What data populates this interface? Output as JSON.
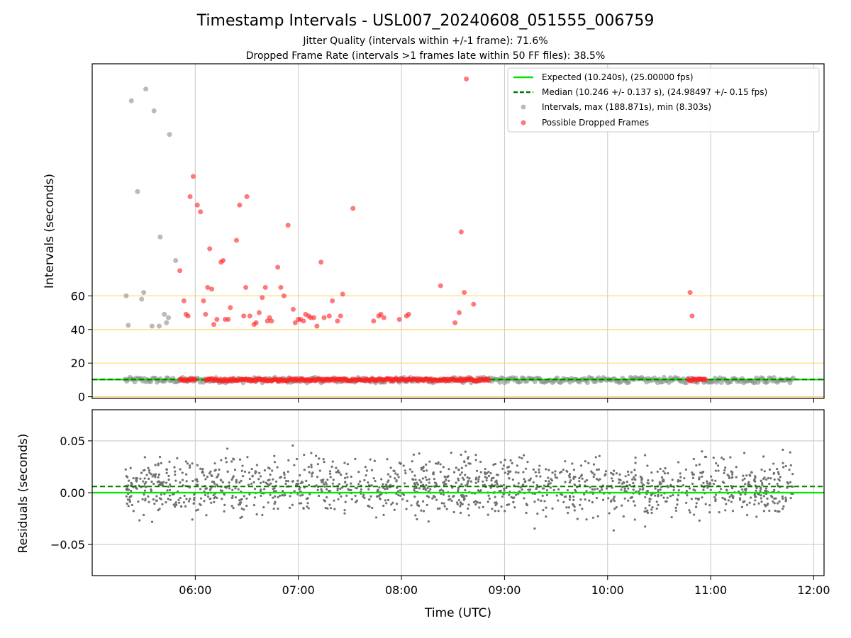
{
  "title": "Timestamp Intervals - USL007_20240608_051555_006759",
  "subtitle_jitter": "Jitter Quality (intervals within +/-1 frame): 71.6%",
  "subtitle_dropped": "Dropped Frame Rate (intervals >1 frames late within 50 FF files): 38.5%",
  "colors": {
    "expected": "#00e600",
    "median": "#007a00",
    "intervals": "#8c8c8c",
    "dropped": "#ff2020",
    "threshold": "#ffd666",
    "residuals": "#707070",
    "grid": "#c8c8c8"
  },
  "chart_data": [
    {
      "type": "scatter",
      "panel": "intervals",
      "ylabel": "Intervals (seconds)",
      "yticks": [
        "0",
        "20",
        "40",
        "60"
      ],
      "xlim_hours": [
        5.0,
        12.1
      ],
      "ylim": [
        -1,
        198
      ],
      "threshold_lines": [
        0,
        20,
        40,
        60
      ],
      "expected_value": 10.24,
      "median_value": 10.246,
      "grid": "vertical",
      "legend_position": "upper-right",
      "legend": {
        "expected": "Expected (10.240s), (25.00000 fps)",
        "median": "Median (10.246 +/- 0.137 s), (24.98497 +/- 0.15 fps)",
        "intervals": "Intervals, max (188.871s), min (8.303s)",
        "dropped": "Possible Dropped Frames"
      },
      "interval_outliers": [
        [
          5.33,
          60
        ],
        [
          5.35,
          42.5
        ],
        [
          5.38,
          176
        ],
        [
          5.44,
          122
        ],
        [
          5.48,
          58
        ],
        [
          5.5,
          62
        ],
        [
          5.52,
          183
        ],
        [
          5.58,
          42
        ],
        [
          5.6,
          170
        ],
        [
          5.65,
          42
        ],
        [
          5.66,
          95
        ],
        [
          5.7,
          49
        ],
        [
          5.72,
          44
        ],
        [
          5.74,
          47
        ],
        [
          5.75,
          156
        ],
        [
          5.81,
          81
        ]
      ],
      "interval_baseline_range_hours": [
        5.32,
        11.8
      ],
      "interval_baseline_y_range": [
        8.3,
        11.5
      ],
      "dropped_frames": [
        [
          5.85,
          75
        ],
        [
          5.89,
          57
        ],
        [
          5.91,
          49
        ],
        [
          5.93,
          48
        ],
        [
          5.95,
          119
        ],
        [
          5.98,
          131
        ],
        [
          6.02,
          114
        ],
        [
          6.05,
          110
        ],
        [
          6.08,
          57
        ],
        [
          6.1,
          49
        ],
        [
          6.12,
          65
        ],
        [
          6.14,
          88
        ],
        [
          6.16,
          64
        ],
        [
          6.18,
          43
        ],
        [
          6.21,
          46
        ],
        [
          6.25,
          80
        ],
        [
          6.27,
          81
        ],
        [
          6.29,
          46
        ],
        [
          6.32,
          46
        ],
        [
          6.34,
          53
        ],
        [
          6.4,
          93
        ],
        [
          6.43,
          114
        ],
        [
          6.47,
          48
        ],
        [
          6.49,
          65
        ],
        [
          6.5,
          119
        ],
        [
          6.53,
          48
        ],
        [
          6.57,
          43
        ],
        [
          6.59,
          44
        ],
        [
          6.62,
          50
        ],
        [
          6.65,
          59
        ],
        [
          6.68,
          65
        ],
        [
          6.7,
          45
        ],
        [
          6.72,
          47
        ],
        [
          6.74,
          45
        ],
        [
          6.8,
          77
        ],
        [
          6.83,
          65
        ],
        [
          6.86,
          60
        ],
        [
          6.9,
          102
        ],
        [
          6.95,
          52
        ],
        [
          6.97,
          44
        ],
        [
          7.0,
          46
        ],
        [
          7.02,
          46
        ],
        [
          7.05,
          45
        ],
        [
          7.07,
          49
        ],
        [
          7.1,
          48
        ],
        [
          7.12,
          47
        ],
        [
          7.15,
          47
        ],
        [
          7.18,
          42
        ],
        [
          7.22,
          80
        ],
        [
          7.25,
          47
        ],
        [
          7.3,
          48
        ],
        [
          7.33,
          57
        ],
        [
          7.38,
          45
        ],
        [
          7.41,
          48
        ],
        [
          7.43,
          61
        ],
        [
          7.53,
          112
        ],
        [
          7.73,
          45
        ],
        [
          7.78,
          48
        ],
        [
          7.8,
          49
        ],
        [
          7.83,
          47
        ],
        [
          7.98,
          46
        ],
        [
          8.05,
          48
        ],
        [
          8.07,
          49
        ],
        [
          8.38,
          66
        ],
        [
          8.52,
          44
        ],
        [
          8.56,
          50
        ],
        [
          8.58,
          98
        ],
        [
          8.61,
          62
        ],
        [
          8.63,
          189
        ],
        [
          8.7,
          55
        ],
        [
          10.8,
          62
        ],
        [
          10.82,
          48
        ]
      ],
      "dropped_baseline_segments_hours": [
        [
          5.85,
          6.0
        ],
        [
          6.1,
          8.85
        ],
        [
          10.78,
          10.95
        ]
      ]
    },
    {
      "type": "scatter",
      "panel": "residuals",
      "ylabel": "Residuals (seconds)",
      "xlabel": "Time (UTC)",
      "xticks": [
        "06:00",
        "07:00",
        "08:00",
        "09:00",
        "10:00",
        "11:00",
        "12:00"
      ],
      "xtick_hours": [
        6,
        7,
        8,
        9,
        10,
        11,
        12
      ],
      "yticks": [
        "−0.05",
        "0.00",
        "0.05"
      ],
      "ytick_values": [
        -0.05,
        0.0,
        0.05
      ],
      "ylim": [
        -0.08,
        0.08
      ],
      "zero_line": 0.0,
      "median_offset": 0.006,
      "grid": "both",
      "x_range_hours": [
        5.32,
        11.8
      ],
      "point_spread_seconds": 0.03
    }
  ]
}
